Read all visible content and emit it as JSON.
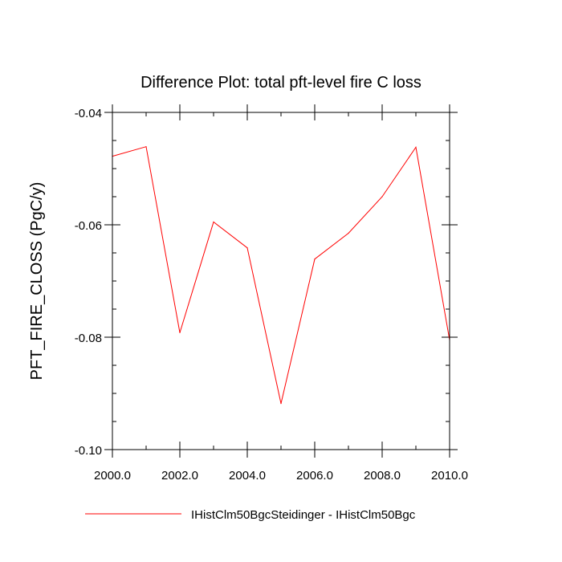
{
  "chart_data": {
    "type": "line",
    "title": "Difference Plot: total pft-level fire C loss",
    "xlabel": "",
    "ylabel": "PFT_FIRE_CLOSS  (PgC/y)",
    "xlim": [
      2000,
      2010
    ],
    "ylim": [
      -0.1,
      -0.04
    ],
    "x_ticks": [
      2000,
      2002,
      2004,
      2006,
      2008,
      2010
    ],
    "x_tick_labels": [
      "2000.0",
      "2002.0",
      "2004.0",
      "2006.0",
      "2008.0",
      "2010.0"
    ],
    "x_minor_step": 1,
    "y_ticks": [
      -0.04,
      -0.06,
      -0.08,
      -0.1
    ],
    "y_tick_labels": [
      "-0.04",
      "-0.06",
      "-0.08",
      "-0.10"
    ],
    "y_minor_step": 0.005,
    "grid": false,
    "legend_position": "bottom",
    "series": [
      {
        "name": "IHistClm50BgcSteidinger - IHistClm50Bgc",
        "color": "#ff0000",
        "x": [
          2000,
          2001,
          2002,
          2003,
          2004,
          2005,
          2006,
          2007,
          2008,
          2009,
          2010
        ],
        "y": [
          -0.0478,
          -0.0461,
          -0.0792,
          -0.0595,
          -0.0641,
          -0.0918,
          -0.0661,
          -0.0615,
          -0.055,
          -0.0462,
          -0.0805
        ]
      }
    ]
  }
}
